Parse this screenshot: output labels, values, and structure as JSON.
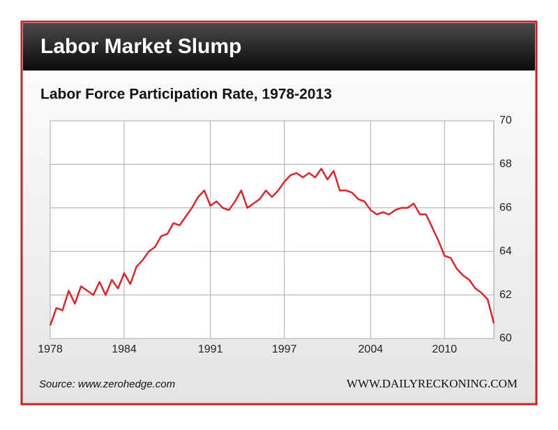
{
  "header": {
    "title": "Labor Market Slump"
  },
  "footer": {
    "source": "Source: www.zerohedge.com",
    "credit": "WWW.DAILYRECKONING.COM"
  },
  "chart_data": {
    "type": "line",
    "title": "Labor Force Participation Rate, 1978-2013",
    "x": [
      1978,
      1978.5,
      1979,
      1979.5,
      1980,
      1980.5,
      1981,
      1981.5,
      1982,
      1982.5,
      1983,
      1983.5,
      1984,
      1984.5,
      1985,
      1985.5,
      1986,
      1986.5,
      1987,
      1987.5,
      1988,
      1988.5,
      1989,
      1989.5,
      1990,
      1990.5,
      1991,
      1991.5,
      1992,
      1992.5,
      1993,
      1993.5,
      1994,
      1994.5,
      1995,
      1995.5,
      1996,
      1996.5,
      1997,
      1997.5,
      1998,
      1998.5,
      1999,
      1999.5,
      2000,
      2000.5,
      2001,
      2001.5,
      2002,
      2002.5,
      2003,
      2003.5,
      2004,
      2004.5,
      2005,
      2005.5,
      2006,
      2006.5,
      2007,
      2007.5,
      2008,
      2008.5,
      2009,
      2009.5,
      2010,
      2010.5,
      2011,
      2011.5,
      2012,
      2012.5,
      2013,
      2013.5,
      2014
    ],
    "series": [
      {
        "name": "Labor Force Participation Rate",
        "color": "#d7262e",
        "values": [
          60.6,
          61.4,
          61.3,
          62.2,
          61.6,
          62.4,
          62.2,
          62.0,
          62.6,
          62.0,
          62.7,
          62.3,
          63.0,
          62.5,
          63.3,
          63.6,
          64.0,
          64.2,
          64.7,
          64.8,
          65.3,
          65.2,
          65.6,
          66.0,
          66.5,
          66.8,
          66.1,
          66.3,
          66.0,
          65.9,
          66.3,
          66.8,
          66.0,
          66.2,
          66.4,
          66.8,
          66.5,
          66.8,
          67.2,
          67.5,
          67.6,
          67.4,
          67.6,
          67.4,
          67.8,
          67.3,
          67.7,
          66.8,
          66.8,
          66.7,
          66.4,
          66.3,
          65.9,
          65.7,
          65.8,
          65.7,
          65.9,
          66.0,
          66.0,
          66.2,
          65.7,
          65.7,
          65.1,
          64.5,
          63.8,
          63.7,
          63.2,
          62.9,
          62.7,
          62.3,
          62.1,
          61.8,
          60.7
        ]
      }
    ],
    "xlim": [
      1978,
      2014
    ],
    "xticks": [
      1978,
      1984,
      1991,
      1997,
      2004,
      2010
    ],
    "ylim": [
      60,
      70
    ],
    "yticks": [
      60,
      62,
      64,
      66,
      68,
      70
    ],
    "grid": true
  }
}
